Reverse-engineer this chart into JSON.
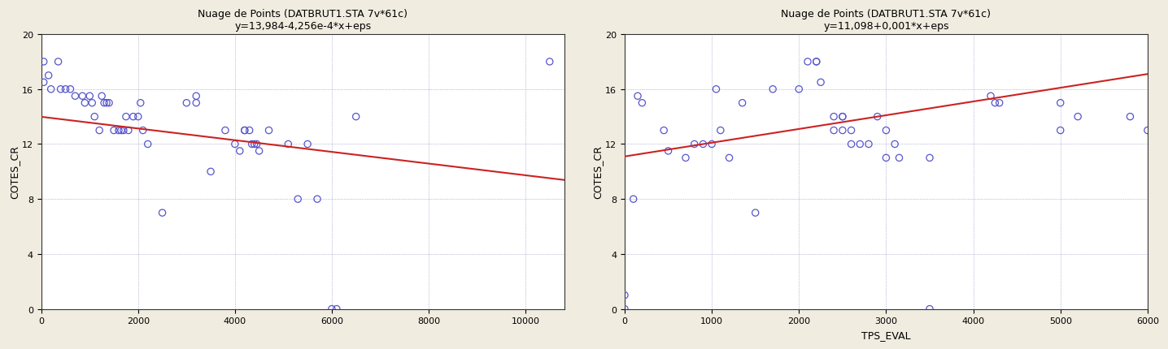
{
  "title1": "Nuage de Points (DATBRUT1.STA 7v*61c)",
  "subtitle1": "y=13,984-4,256e-4*x+eps",
  "title2": "Nuage de Points (DATBRUT1.STA 7v*61c)",
  "subtitle2": "y=11,098+0,001*x+eps",
  "xlabel1": "",
  "xlabel2": "TPS_EVAL",
  "ylabel": "COTES_CR",
  "bg_color": "#f0ece0",
  "plot_bg_color": "#ffffff",
  "scatter_color": "#5555cc",
  "line_color": "#cc2222",
  "plot1": {
    "intercept": 13.984,
    "slope": -0.0004256,
    "xlim": [
      0,
      10800
    ],
    "ylim": [
      0,
      20
    ],
    "xticks": [
      0,
      2000,
      4000,
      6000,
      8000,
      10000
    ],
    "yticks": [
      0,
      4,
      8,
      12,
      16,
      20
    ],
    "x": [
      50,
      150,
      350,
      50,
      200,
      400,
      500,
      600,
      700,
      850,
      900,
      1000,
      1050,
      1100,
      1200,
      1250,
      1300,
      1350,
      1400,
      1500,
      1600,
      1650,
      1700,
      1750,
      1800,
      1900,
      2000,
      2050,
      2100,
      2200,
      2500,
      3000,
      3200,
      3200,
      3500,
      3800,
      4000,
      4100,
      4200,
      4200,
      4300,
      4350,
      4400,
      4450,
      4500,
      4700,
      5100,
      5300,
      5500,
      5700,
      6000,
      6100,
      6500,
      10500
    ],
    "y": [
      18,
      17,
      18,
      16.5,
      16,
      16,
      16,
      16,
      15.5,
      15.5,
      15,
      15.5,
      15,
      14,
      13,
      15.5,
      15,
      15,
      15,
      13,
      13,
      13,
      13,
      14,
      13,
      14,
      14,
      15,
      13,
      12,
      7,
      15,
      15,
      15.5,
      10,
      13,
      12,
      11.5,
      13,
      13,
      13,
      12,
      12,
      12,
      11.5,
      13,
      12,
      8,
      12,
      8,
      0,
      0,
      14,
      18
    ]
  },
  "plot2": {
    "intercept": 11.098,
    "slope": 0.001,
    "xlim": [
      0,
      6000
    ],
    "ylim": [
      0,
      20
    ],
    "xticks": [
      0,
      1000,
      2000,
      3000,
      4000,
      5000,
      6000
    ],
    "yticks": [
      0,
      4,
      8,
      12,
      16,
      20
    ],
    "x": [
      0,
      0,
      100,
      150,
      200,
      450,
      500,
      700,
      800,
      900,
      1000,
      1050,
      1100,
      1200,
      1350,
      1500,
      1700,
      2000,
      2100,
      2200,
      2200,
      2250,
      2400,
      2400,
      2500,
      2500,
      2500,
      2600,
      2600,
      2700,
      2800,
      2900,
      3000,
      3000,
      3100,
      3150,
      3500,
      3500,
      4200,
      4250,
      4300,
      5000,
      5000,
      5200,
      5800,
      6000
    ],
    "y": [
      0,
      1,
      8,
      15.5,
      15,
      13,
      11.5,
      11,
      12,
      12,
      12,
      16,
      13,
      11,
      15,
      7,
      16,
      16,
      18,
      18,
      18,
      16.5,
      13,
      14,
      14,
      14,
      13,
      12,
      13,
      12,
      12,
      14,
      13,
      11,
      12,
      11,
      0,
      11,
      15.5,
      15,
      15,
      13,
      15,
      14,
      14,
      13
    ]
  }
}
